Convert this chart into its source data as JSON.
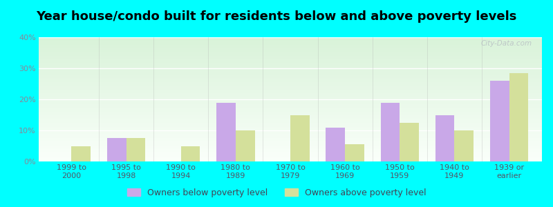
{
  "title": "Year house/condo built for residents below and above poverty levels",
  "categories": [
    "1999 to\n2000",
    "1995 to\n1998",
    "1990 to\n1994",
    "1980 to\n1989",
    "1970 to\n1979",
    "1960 to\n1969",
    "1950 to\n1959",
    "1940 to\n1949",
    "1939 or\nearlier"
  ],
  "below_poverty": [
    0,
    7.5,
    0,
    19,
    0,
    11,
    19,
    15,
    26
  ],
  "above_poverty": [
    5,
    7.5,
    5,
    10,
    15,
    5.5,
    12.5,
    10,
    28.5
  ],
  "below_color": "#c9a8e8",
  "above_color": "#d4e09b",
  "outer_bg": "#00ffff",
  "ylim": [
    0,
    40
  ],
  "yticks": [
    0,
    10,
    20,
    30,
    40
  ],
  "ytick_labels": [
    "0%",
    "10%",
    "20%",
    "30%",
    "40%"
  ],
  "bar_width": 0.35,
  "legend_below": "Owners below poverty level",
  "legend_above": "Owners above poverty level",
  "title_fontsize": 13,
  "tick_fontsize": 8,
  "legend_fontsize": 9,
  "ytick_color": "#888899",
  "xtick_color": "#555566"
}
